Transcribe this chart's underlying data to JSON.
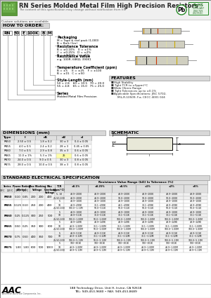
{
  "title": "RN Series Molded Metal Film High Precision Resistors",
  "subtitle": "The content of this specification may change without notification from file",
  "custom": "Custom solutions are available.",
  "how_to_order": "HOW TO ORDER:",
  "order_codes": [
    "RN",
    "50",
    "E",
    "100K",
    "B",
    "M"
  ],
  "features_title": "FEATURES",
  "features": [
    "High Stability",
    "Tight TCR to ±5ppm/°C",
    "Wide Ohmic Range",
    "Tight Tolerances up to ±0.1%",
    "Applicable Specifications: JISC 5702,\n    MIL-R-10509, F.a, CECC 4001 024"
  ],
  "dimensions_title": "DIMENSIONS (mm)",
  "dim_headers": [
    "Type",
    "l",
    "d1",
    "d2",
    "d"
  ],
  "dim_rows": [
    [
      "RN50",
      "2.50 ± 0.5",
      "1.8 ± 0.2",
      "30 ± 3",
      "0.4 ± 0.05"
    ],
    [
      "RN55",
      "4.0 ± 0.5",
      "2.4 ± 0.2",
      "28 ± 3",
      "0.45 ± 0.05"
    ],
    [
      "RN60",
      "7.0 ± 0.5",
      "2.9 ± 0.8",
      "35 ± 3",
      "0.6 ± 0.05"
    ],
    [
      "RN65",
      "11.0 ± 1%",
      "5.3 ± 1%",
      "25",
      "0.6 ± 0.05"
    ],
    [
      "RN70",
      "24.0 ± 0.5",
      "9.0 ± 0.5",
      "30 ± 3",
      "0.8 ± 0.05"
    ],
    [
      "RN75",
      "28.0 ± 0.5",
      "10.0 ± 0.5",
      "38 ± 3",
      "0.8 ± 0.05"
    ]
  ],
  "schematic_title": "SCHEMATIC",
  "electrical_title": "STANDARD ELECTRICAL SPECIFICATION",
  "footer_text": "188 Technology Drive, Unit H, Irvine, CA 92618\nTEL: 949-453-9680 • FAX: 949-453-8689",
  "bg_color": "#ffffff",
  "header_bg": "#f0f0f0",
  "section_header_bg": "#d8d8d8",
  "table_header_bg": "#e0e0e0",
  "border_color": "#999999"
}
